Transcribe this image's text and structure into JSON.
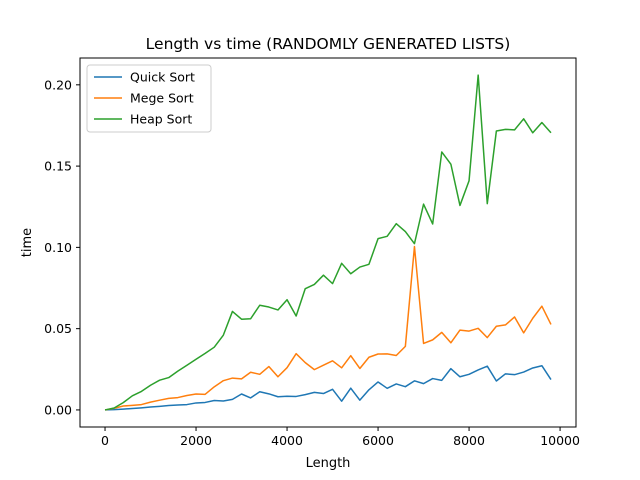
{
  "chart_data": {
    "type": "line",
    "title": "Length vs time (RANDOMLY GENERATED LISTS)",
    "xlabel": "Length",
    "ylabel": "time",
    "xlim": [
      -550,
      10350
    ],
    "ylim": [
      -0.0105,
      0.2165
    ],
    "xticks": [
      0,
      2000,
      4000,
      6000,
      8000,
      10000
    ],
    "xtick_labels": [
      "0",
      "2000",
      "4000",
      "6000",
      "8000",
      "10000"
    ],
    "yticks": [
      0.0,
      0.05,
      0.1,
      0.15,
      0.2
    ],
    "ytick_labels": [
      "0.00",
      "0.05",
      "0.10",
      "0.15",
      "0.20"
    ],
    "grid": false,
    "legend_position": "top-left",
    "x": [
      0,
      200,
      400,
      600,
      800,
      1000,
      1200,
      1400,
      1600,
      1800,
      2000,
      2200,
      2400,
      2600,
      2800,
      3000,
      3200,
      3400,
      3600,
      3800,
      4000,
      4200,
      4400,
      4600,
      4800,
      5000,
      5200,
      5400,
      5600,
      5800,
      6000,
      6200,
      6400,
      6600,
      6800,
      7000,
      7200,
      7400,
      7600,
      7800,
      8000,
      8200,
      8400,
      8600,
      8800,
      9000,
      9200,
      9400,
      9600,
      9800
    ],
    "series": [
      {
        "name": "Quick Sort",
        "color": "#1f77b4",
        "values": [
          0.0,
          0.0002,
          0.0005,
          0.0009,
          0.0013,
          0.0018,
          0.0022,
          0.0027,
          0.003,
          0.0033,
          0.0043,
          0.0046,
          0.0058,
          0.0055,
          0.0065,
          0.0098,
          0.0074,
          0.0112,
          0.0099,
          0.0081,
          0.0084,
          0.0083,
          0.0094,
          0.0108,
          0.0101,
          0.0127,
          0.0054,
          0.0134,
          0.006,
          0.0124,
          0.0172,
          0.0133,
          0.016,
          0.0143,
          0.0179,
          0.0162,
          0.0193,
          0.0182,
          0.0254,
          0.0204,
          0.0219,
          0.0246,
          0.0269,
          0.0178,
          0.0222,
          0.0217,
          0.0233,
          0.0258,
          0.0272,
          0.0187
        ]
      },
      {
        "name": "Mege Sort",
        "color": "#ff7f0e",
        "values": [
          0.0,
          0.001,
          0.0024,
          0.0028,
          0.0033,
          0.0048,
          0.006,
          0.0071,
          0.0076,
          0.0089,
          0.0098,
          0.0096,
          0.0142,
          0.018,
          0.0196,
          0.0191,
          0.0232,
          0.0219,
          0.0267,
          0.0204,
          0.026,
          0.0346,
          0.0291,
          0.0248,
          0.0275,
          0.0302,
          0.0259,
          0.0334,
          0.0255,
          0.0324,
          0.0344,
          0.0345,
          0.0335,
          0.0391,
          0.1005,
          0.0409,
          0.0431,
          0.0477,
          0.0413,
          0.0491,
          0.0485,
          0.0502,
          0.0445,
          0.0515,
          0.0523,
          0.0572,
          0.0474,
          0.0564,
          0.0638,
          0.0526
        ]
      },
      {
        "name": "Heap Sort",
        "color": "#2ca02c",
        "values": [
          0.0,
          0.0012,
          0.0045,
          0.0087,
          0.0114,
          0.0152,
          0.0183,
          0.0199,
          0.0239,
          0.0275,
          0.0312,
          0.0348,
          0.0386,
          0.046,
          0.0606,
          0.0558,
          0.0561,
          0.0644,
          0.0633,
          0.0615,
          0.0678,
          0.0578,
          0.0746,
          0.0772,
          0.0829,
          0.0777,
          0.0902,
          0.0838,
          0.0879,
          0.0896,
          0.1054,
          0.1068,
          0.1146,
          0.1097,
          0.1023,
          0.1266,
          0.1144,
          0.1587,
          0.1512,
          0.1258,
          0.141,
          0.206,
          0.1269,
          0.1716,
          0.1726,
          0.1723,
          0.1791,
          0.1705,
          0.1768,
          0.1705
        ]
      }
    ]
  }
}
